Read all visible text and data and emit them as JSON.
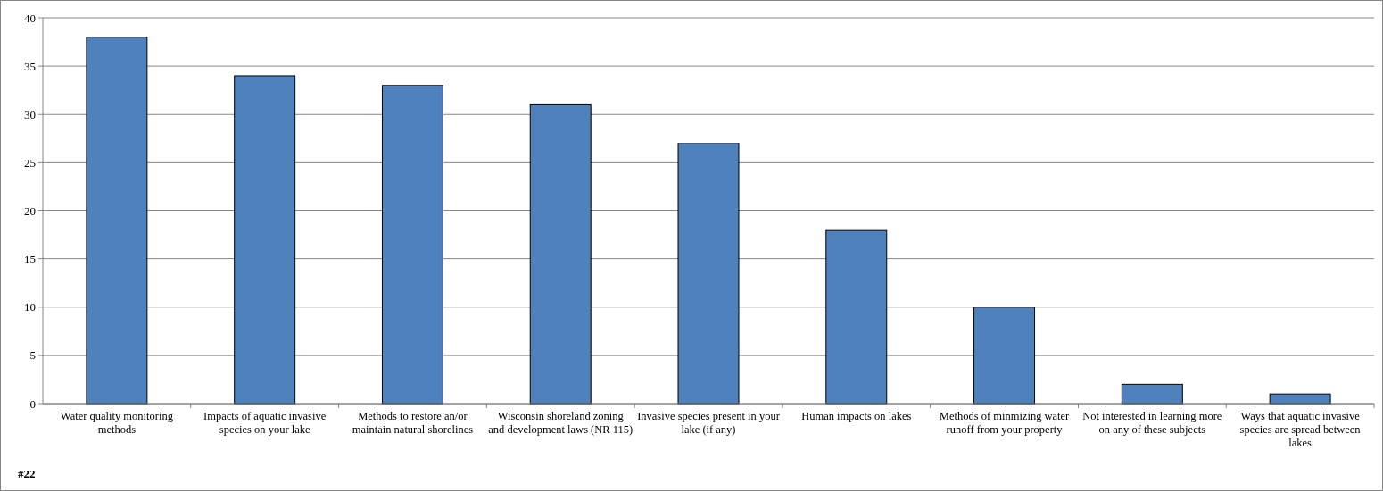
{
  "chart_data": {
    "type": "bar",
    "categories": [
      "Water quality monitoring methods",
      "Impacts of aquatic invasive species on your lake",
      "Methods to restore an/or maintain natural shorelines",
      "Wisconsin shoreland zoning and development laws (NR 115)",
      "Invasive species present in your lake (if any)",
      "Human impacts on lakes",
      "Methods of minmizing water runoff from your property",
      "Not interested in learning more on any of these subjects",
      "Ways that aquatic invasive species are spread between lakes"
    ],
    "values": [
      38,
      34,
      33,
      31,
      27,
      18,
      10,
      2,
      1
    ],
    "color": "#4f81bd",
    "ylim": [
      0,
      40
    ],
    "yticks": [
      0,
      5,
      10,
      15,
      20,
      25,
      30,
      35,
      40
    ],
    "grid": "y",
    "annotations": [
      "#22"
    ]
  }
}
